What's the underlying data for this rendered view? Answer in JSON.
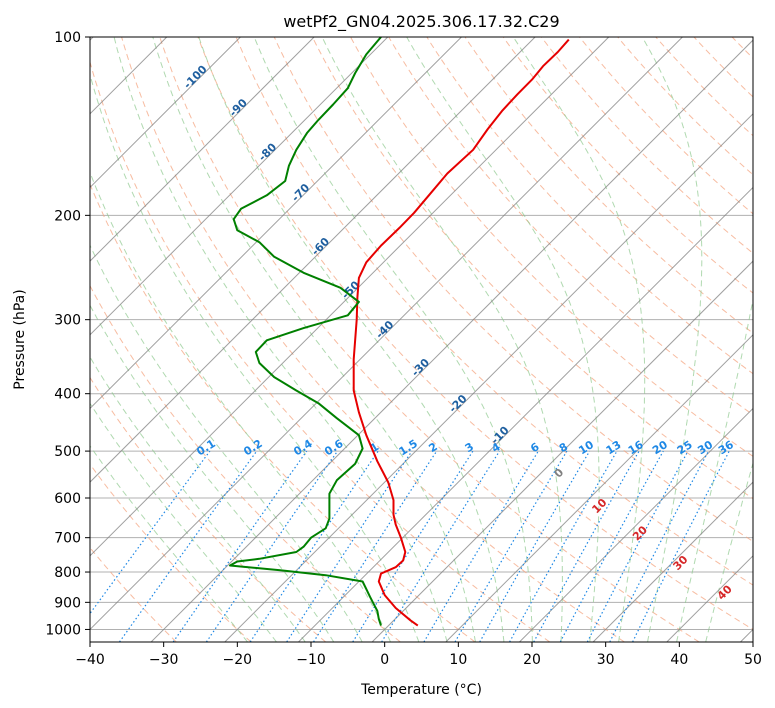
{
  "chart_data": {
    "type": "line",
    "title": "wetPf2_GN04.2025.306.17.32.C29",
    "xlabel": "Temperature (°C)",
    "ylabel": "Pressure (hPa)",
    "xlim": [
      -40,
      50
    ],
    "ylim": [
      1050,
      100
    ],
    "y_scale": "log",
    "x_ticks": [
      -40,
      -30,
      -20,
      -10,
      0,
      10,
      20,
      30,
      40,
      50
    ],
    "x_tick_labels": [
      "−40",
      "−30",
      "−20",
      "−10",
      "0",
      "10",
      "20",
      "30",
      "40",
      "50"
    ],
    "y_ticks": [
      100,
      200,
      300,
      400,
      500,
      600,
      700,
      800,
      900,
      1000
    ],
    "y_tick_labels": [
      "100",
      "200",
      "300",
      "400",
      "500",
      "600",
      "700",
      "800",
      "900",
      "1000"
    ],
    "grid": true,
    "series": [
      {
        "role": "temperature",
        "color": "#e60000",
        "points": [
          [
            4.5,
            985
          ],
          [
            3.5,
            965
          ],
          [
            1.5,
            920
          ],
          [
            0,
            875
          ],
          [
            -0.8,
            830
          ],
          [
            -0.5,
            805
          ],
          [
            1.5,
            785
          ],
          [
            2.5,
            765
          ],
          [
            2.8,
            740
          ],
          [
            2.2,
            700
          ],
          [
            1.5,
            665
          ],
          [
            1.2,
            640
          ],
          [
            1.2,
            605
          ],
          [
            0.5,
            565
          ],
          [
            -1,
            520
          ],
          [
            -2.5,
            470
          ],
          [
            -3.5,
            430
          ],
          [
            -4.2,
            395
          ],
          [
            -4.2,
            350
          ],
          [
            -3.8,
            300
          ],
          [
            -3.7,
            275
          ],
          [
            -3.5,
            255
          ],
          [
            -2.5,
            240
          ],
          [
            -0.5,
            225
          ],
          [
            2,
            210
          ],
          [
            4,
            198
          ],
          [
            6,
            185
          ],
          [
            8.5,
            170
          ],
          [
            12,
            155
          ],
          [
            14,
            143
          ],
          [
            16,
            133
          ],
          [
            18,
            125
          ],
          [
            20,
            118
          ],
          [
            21.5,
            112
          ],
          [
            23.5,
            106
          ],
          [
            25,
            101
          ]
        ]
      },
      {
        "role": "dewpoint",
        "color": "#008000",
        "points": [
          [
            -0.5,
            985
          ],
          [
            -0.8,
            960
          ],
          [
            -1,
            930
          ],
          [
            -1.5,
            905
          ],
          [
            -2,
            880
          ],
          [
            -2.5,
            855
          ],
          [
            -3,
            830
          ],
          [
            -8,
            810
          ],
          [
            -14,
            795
          ],
          [
            -21,
            780
          ],
          [
            -20,
            768
          ],
          [
            -17,
            760
          ],
          [
            -12,
            740
          ],
          [
            -11,
            725
          ],
          [
            -10,
            700
          ],
          [
            -8,
            675
          ],
          [
            -7.5,
            650
          ],
          [
            -7.5,
            620
          ],
          [
            -7.5,
            590
          ],
          [
            -6.5,
            560
          ],
          [
            -4,
            525
          ],
          [
            -3,
            495
          ],
          [
            -3.5,
            470
          ],
          [
            -6.5,
            440
          ],
          [
            -9,
            415
          ],
          [
            -12,
            395
          ],
          [
            -15,
            375
          ],
          [
            -17,
            355
          ],
          [
            -17.5,
            340
          ],
          [
            -16,
            325
          ],
          [
            -11,
            310
          ],
          [
            -5,
            295
          ],
          [
            -3.5,
            280
          ],
          [
            -6,
            265
          ],
          [
            -11,
            250
          ],
          [
            -15,
            235
          ],
          [
            -17,
            222
          ],
          [
            -20,
            212
          ],
          [
            -20.5,
            203
          ],
          [
            -19.5,
            195
          ],
          [
            -16,
            185
          ],
          [
            -13.5,
            175
          ],
          [
            -13,
            165
          ],
          [
            -12,
            155
          ],
          [
            -10.5,
            145
          ],
          [
            -9,
            138
          ],
          [
            -7,
            130
          ],
          [
            -5,
            122
          ],
          [
            -4,
            115
          ],
          [
            -2.5,
            107
          ],
          [
            -0.5,
            100
          ]
        ]
      }
    ],
    "dry_adiabat_color": "#f4a582",
    "moist_adiabat_color": "#8fc98f",
    "isotherm_color": "#808080",
    "mixing_ratio_color": "#1e88e5",
    "isotherm_labels": [
      {
        "text": "-100",
        "t": -100,
        "p": 118
      },
      {
        "text": "-90",
        "t": -90,
        "p": 133
      },
      {
        "text": "-80",
        "t": -80,
        "p": 158
      },
      {
        "text": "-70",
        "t": -70,
        "p": 185
      },
      {
        "text": "-60",
        "t": -60,
        "p": 228
      },
      {
        "text": "-50",
        "t": -50,
        "p": 270
      },
      {
        "text": "-40",
        "t": -40,
        "p": 315
      },
      {
        "text": "-30",
        "t": -30,
        "p": 365
      },
      {
        "text": "-20",
        "t": -20,
        "p": 420
      },
      {
        "text": "-10",
        "t": -10,
        "p": 475
      }
    ],
    "mixing_ratio_labels": [
      "0.1",
      "0.2",
      "0.4",
      "0.6",
      "1",
      "1.5",
      "2",
      "3",
      "4",
      "6",
      "8",
      "10",
      "13",
      "16",
      "20",
      "25",
      "30",
      "36"
    ],
    "mixing_ratio_values": [
      0.1,
      0.2,
      0.4,
      0.6,
      1,
      1.5,
      2,
      3,
      4,
      6,
      8,
      10,
      13,
      16,
      20,
      25,
      30,
      36
    ],
    "moist_labels": [
      {
        "text": "0",
        "t": 24,
        "p": 550,
        "color": "#808080"
      },
      {
        "text": "10",
        "t": 29.5,
        "p": 625,
        "color": "#d62728"
      },
      {
        "text": "20",
        "t": 35,
        "p": 695,
        "color": "#d62728"
      },
      {
        "text": "30",
        "t": 40.5,
        "p": 780,
        "color": "#d62728"
      },
      {
        "text": "40",
        "t": 46.5,
        "p": 875,
        "color": "#d62728"
      }
    ]
  }
}
